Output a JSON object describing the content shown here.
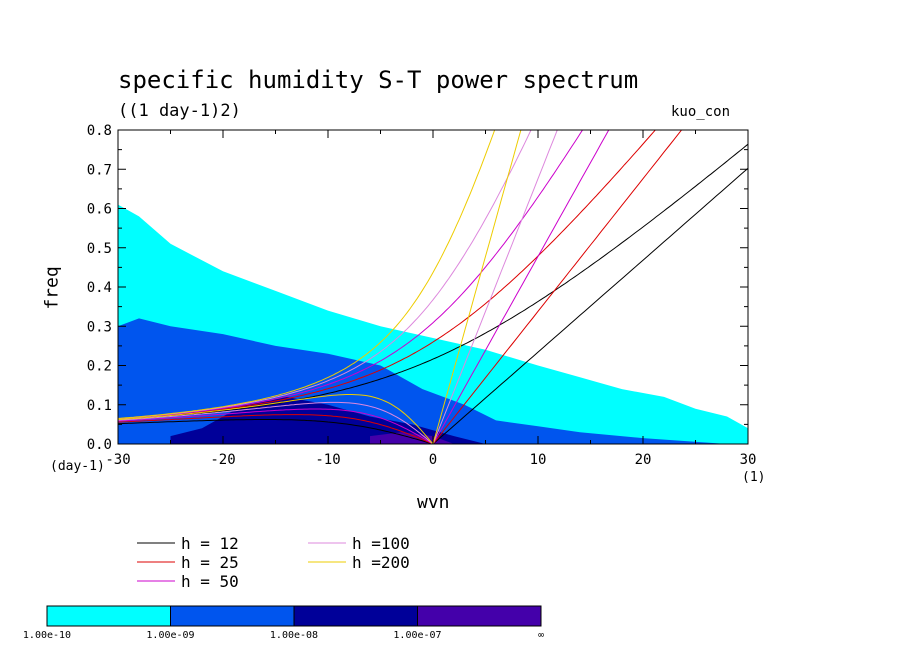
{
  "chart_data": {
    "type": "heatmap",
    "title": "specific humidity S-T power spectrum",
    "subtitle": "((1 day-1)2)",
    "case_label": "kuo_con",
    "xlabel": "wvn",
    "ylabel": "freq",
    "x_unit": "(1)",
    "y_unit": "(day-1)",
    "xlim": [
      -30,
      30
    ],
    "ylim": [
      0,
      0.8
    ],
    "x_ticks": [
      -30,
      -20,
      -10,
      0,
      10,
      20,
      30
    ],
    "y_ticks": [
      0.0,
      0.1,
      0.2,
      0.3,
      0.4,
      0.5,
      0.6,
      0.7,
      0.8
    ],
    "x_tick_labels": [
      "-30",
      "-20",
      "-10",
      "0",
      "10",
      "20",
      "30"
    ],
    "y_tick_labels": [
      "0.0",
      "0.1",
      "0.2",
      "0.3",
      "0.4",
      "0.5",
      "0.6",
      "0.7",
      "0.8"
    ],
    "colorbar": {
      "labels": [
        "1.00e-10",
        "1.00e-09",
        "1.00e-08",
        "1.00e-07",
        "∞"
      ],
      "colors": [
        "#00ffff",
        "#0055ee",
        "#000099",
        "#4400aa"
      ]
    },
    "series": [
      {
        "name": "h = 12",
        "color": "#000000"
      },
      {
        "name": "h = 25",
        "color": "#dd0000"
      },
      {
        "name": "h = 50",
        "color": "#cc00cc"
      },
      {
        "name": "h =100",
        "color": "#dd88dd"
      },
      {
        "name": "h =200",
        "color": "#eecc00"
      }
    ],
    "fill_regions": [
      {
        "level": 0,
        "points": [
          [
            -30,
            0.0
          ],
          [
            30,
            0.0
          ],
          [
            30,
            0.04
          ],
          [
            28,
            0.07
          ],
          [
            25,
            0.09
          ],
          [
            22,
            0.12
          ],
          [
            18,
            0.14
          ],
          [
            14,
            0.17
          ],
          [
            10,
            0.2
          ],
          [
            5,
            0.24
          ],
          [
            0,
            0.27
          ],
          [
            -5,
            0.3
          ],
          [
            -10,
            0.34
          ],
          [
            -15,
            0.39
          ],
          [
            -20,
            0.44
          ],
          [
            -25,
            0.51
          ],
          [
            -28,
            0.58
          ],
          [
            -30,
            0.61
          ]
        ]
      },
      {
        "level": 1,
        "points": [
          [
            -30,
            0.0
          ],
          [
            28,
            0.0
          ],
          [
            20,
            0.015
          ],
          [
            14,
            0.03
          ],
          [
            10,
            0.045
          ],
          [
            6,
            0.06
          ],
          [
            3,
            0.1
          ],
          [
            -1,
            0.14
          ],
          [
            -5,
            0.2
          ],
          [
            -10,
            0.23
          ],
          [
            -15,
            0.25
          ],
          [
            -20,
            0.28
          ],
          [
            -25,
            0.3
          ],
          [
            -28,
            0.32
          ],
          [
            -30,
            0.3
          ]
        ]
      },
      {
        "level": 2,
        "points": [
          [
            -25,
            0.0
          ],
          [
            5,
            0.0
          ],
          [
            2,
            0.02
          ],
          [
            -2,
            0.05
          ],
          [
            -6,
            0.07
          ],
          [
            -10,
            0.1
          ],
          [
            -14,
            0.12
          ],
          [
            -18,
            0.1
          ],
          [
            -22,
            0.04
          ],
          [
            -25,
            0.02
          ]
        ]
      },
      {
        "level": 3,
        "points": [
          [
            -6,
            0.0
          ],
          [
            2,
            0.0
          ],
          [
            0,
            0.02
          ],
          [
            -3,
            0.03
          ],
          [
            -6,
            0.02
          ]
        ]
      }
    ]
  },
  "legend": {
    "entries": [
      {
        "label": "h = 12",
        "color": "#000000"
      },
      {
        "label": "h = 25",
        "color": "#dd0000"
      },
      {
        "label": "h = 50",
        "color": "#cc00cc"
      },
      {
        "label": "h =100",
        "color": "#dd88dd"
      },
      {
        "label": "h =200",
        "color": "#eecc00"
      }
    ]
  }
}
